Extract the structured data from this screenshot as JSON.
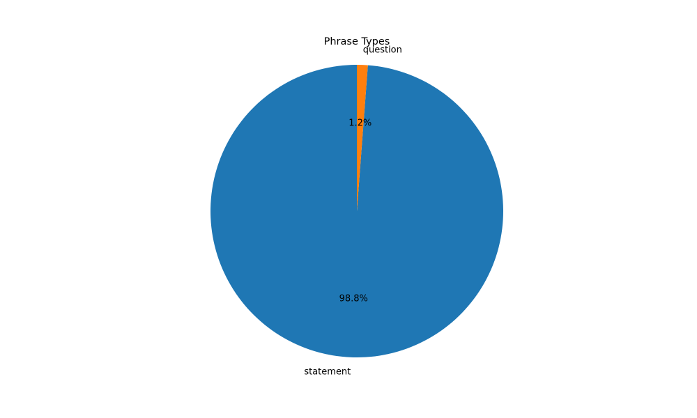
{
  "chart_data": {
    "type": "pie",
    "title": "Phrase Types",
    "start_angle_deg": 90,
    "direction": "counterclockwise",
    "slices": [
      {
        "label": "statement",
        "value": 98.8,
        "pct_label": "98.8%",
        "color": "#1f77b4"
      },
      {
        "label": "question",
        "value": 1.2,
        "pct_label": "1.2%",
        "color": "#ff7f0e"
      }
    ]
  }
}
